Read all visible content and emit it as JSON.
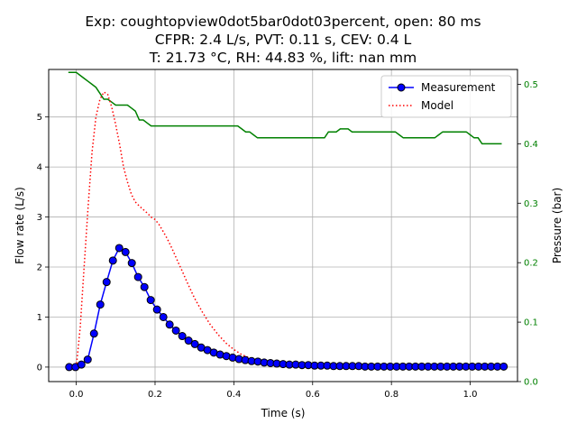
{
  "chart_data": {
    "type": "line",
    "title": [
      "Exp: coughtopview0dot5bar0dot03percent, open: 80 ms",
      "CFPR: 2.4 L/s, PVT: 0.11 s, CEV: 0.4 L",
      "T: 21.73 °C, RH: 44.83 %, lift: nan mm"
    ],
    "xlabel": "Time (s)",
    "ylabel": "Flow rate (L/s)",
    "y2label": "Pressure (bar)",
    "xlim": [
      -0.07,
      1.12
    ],
    "ylim": [
      -0.29,
      5.95
    ],
    "y2lim": [
      0.0,
      0.525
    ],
    "xticks": [
      "0.0",
      "0.2",
      "0.4",
      "0.6",
      "0.8",
      "1.0"
    ],
    "yticks": [
      "0",
      "1",
      "2",
      "3",
      "4",
      "5"
    ],
    "y2ticks": [
      "0.0",
      "0.1",
      "0.2",
      "0.3",
      "0.4",
      "0.5"
    ],
    "grid": true,
    "legend_position": "top-right",
    "colors": {
      "measurement": "#0000ff",
      "marker_face": "#0000ff",
      "marker_edge": "#000000",
      "model": "#ff0000",
      "pressure": "#008000"
    },
    "series": [
      {
        "name": "Measurement",
        "axis": "left",
        "style": "line-circle",
        "x": [
          -0.018,
          -0.002,
          0.013,
          0.029,
          0.045,
          0.061,
          0.077,
          0.093,
          0.109,
          0.125,
          0.141,
          0.157,
          0.173,
          0.189,
          0.205,
          0.221,
          0.237,
          0.253,
          0.269,
          0.285,
          0.301,
          0.317,
          0.333,
          0.349,
          0.365,
          0.381,
          0.397,
          0.413,
          0.429,
          0.445,
          0.461,
          0.477,
          0.493,
          0.509,
          0.525,
          0.541,
          0.557,
          0.573,
          0.589,
          0.605,
          0.621,
          0.637,
          0.653,
          0.669,
          0.685,
          0.701,
          0.717,
          0.733,
          0.749,
          0.765,
          0.781,
          0.797,
          0.813,
          0.829,
          0.845,
          0.861,
          0.877,
          0.893,
          0.909,
          0.925,
          0.941,
          0.957,
          0.973,
          0.989,
          1.005,
          1.021,
          1.037,
          1.053,
          1.069,
          1.085
        ],
        "y": [
          0.0,
          0.0,
          0.05,
          0.15,
          0.67,
          1.25,
          1.7,
          2.13,
          2.38,
          2.3,
          2.08,
          1.8,
          1.6,
          1.34,
          1.15,
          1.0,
          0.85,
          0.73,
          0.62,
          0.53,
          0.46,
          0.39,
          0.34,
          0.29,
          0.25,
          0.22,
          0.19,
          0.16,
          0.14,
          0.12,
          0.11,
          0.09,
          0.08,
          0.07,
          0.06,
          0.05,
          0.05,
          0.04,
          0.04,
          0.03,
          0.03,
          0.03,
          0.02,
          0.02,
          0.02,
          0.02,
          0.02,
          0.01,
          0.01,
          0.01,
          0.01,
          0.01,
          0.01,
          0.01,
          0.01,
          0.01,
          0.01,
          0.01,
          0.01,
          0.01,
          0.01,
          0.01,
          0.01,
          0.01,
          0.01,
          0.01,
          0.01,
          0.01,
          0.01,
          0.01
        ]
      },
      {
        "name": "Model",
        "axis": "left",
        "style": "dotted",
        "x": [
          0.0,
          0.01,
          0.02,
          0.03,
          0.04,
          0.05,
          0.06,
          0.07,
          0.08,
          0.09,
          0.1,
          0.11,
          0.12,
          0.13,
          0.14,
          0.15,
          0.16,
          0.17,
          0.18,
          0.19,
          0.2,
          0.21,
          0.22,
          0.23,
          0.24,
          0.25,
          0.26,
          0.27,
          0.28,
          0.29,
          0.3,
          0.32,
          0.34,
          0.36,
          0.38,
          0.4,
          0.42,
          0.45,
          0.48,
          0.5,
          0.55,
          0.6,
          0.65
        ],
        "y": [
          0.0,
          0.8,
          2.0,
          3.2,
          4.3,
          5.0,
          5.35,
          5.5,
          5.45,
          5.2,
          4.85,
          4.45,
          4.0,
          3.7,
          3.45,
          3.3,
          3.22,
          3.15,
          3.08,
          3.0,
          2.95,
          2.85,
          2.72,
          2.58,
          2.42,
          2.25,
          2.07,
          1.9,
          1.72,
          1.55,
          1.38,
          1.1,
          0.85,
          0.65,
          0.48,
          0.35,
          0.25,
          0.15,
          0.09,
          0.06,
          0.03,
          0.02,
          0.01
        ]
      },
      {
        "name": "",
        "axis": "right",
        "style": "line",
        "x": [
          -0.02,
          0.0,
          0.01,
          0.02,
          0.03,
          0.04,
          0.05,
          0.06,
          0.07,
          0.08,
          0.09,
          0.1,
          0.11,
          0.12,
          0.13,
          0.14,
          0.15,
          0.16,
          0.17,
          0.18,
          0.19,
          0.2,
          0.22,
          0.25,
          0.3,
          0.35,
          0.4,
          0.41,
          0.42,
          0.43,
          0.44,
          0.45,
          0.46,
          0.47,
          0.5,
          0.55,
          0.6,
          0.61,
          0.62,
          0.63,
          0.64,
          0.65,
          0.66,
          0.67,
          0.68,
          0.69,
          0.7,
          0.71,
          0.72,
          0.75,
          0.8,
          0.81,
          0.82,
          0.83,
          0.85,
          0.9,
          0.91,
          0.92,
          0.93,
          0.95,
          0.99,
          1.0,
          1.01,
          1.02,
          1.03,
          1.04,
          1.05,
          1.07,
          1.08
        ],
        "y": [
          0.52,
          0.52,
          0.515,
          0.51,
          0.505,
          0.5,
          0.495,
          0.485,
          0.475,
          0.475,
          0.47,
          0.465,
          0.465,
          0.465,
          0.465,
          0.46,
          0.455,
          0.44,
          0.44,
          0.435,
          0.43,
          0.43,
          0.43,
          0.43,
          0.43,
          0.43,
          0.43,
          0.43,
          0.425,
          0.42,
          0.42,
          0.415,
          0.41,
          0.41,
          0.41,
          0.41,
          0.41,
          0.41,
          0.41,
          0.41,
          0.42,
          0.42,
          0.42,
          0.425,
          0.425,
          0.425,
          0.42,
          0.42,
          0.42,
          0.42,
          0.42,
          0.42,
          0.415,
          0.41,
          0.41,
          0.41,
          0.41,
          0.415,
          0.42,
          0.42,
          0.42,
          0.415,
          0.41,
          0.41,
          0.4,
          0.4,
          0.4,
          0.4,
          0.4
        ]
      }
    ]
  }
}
